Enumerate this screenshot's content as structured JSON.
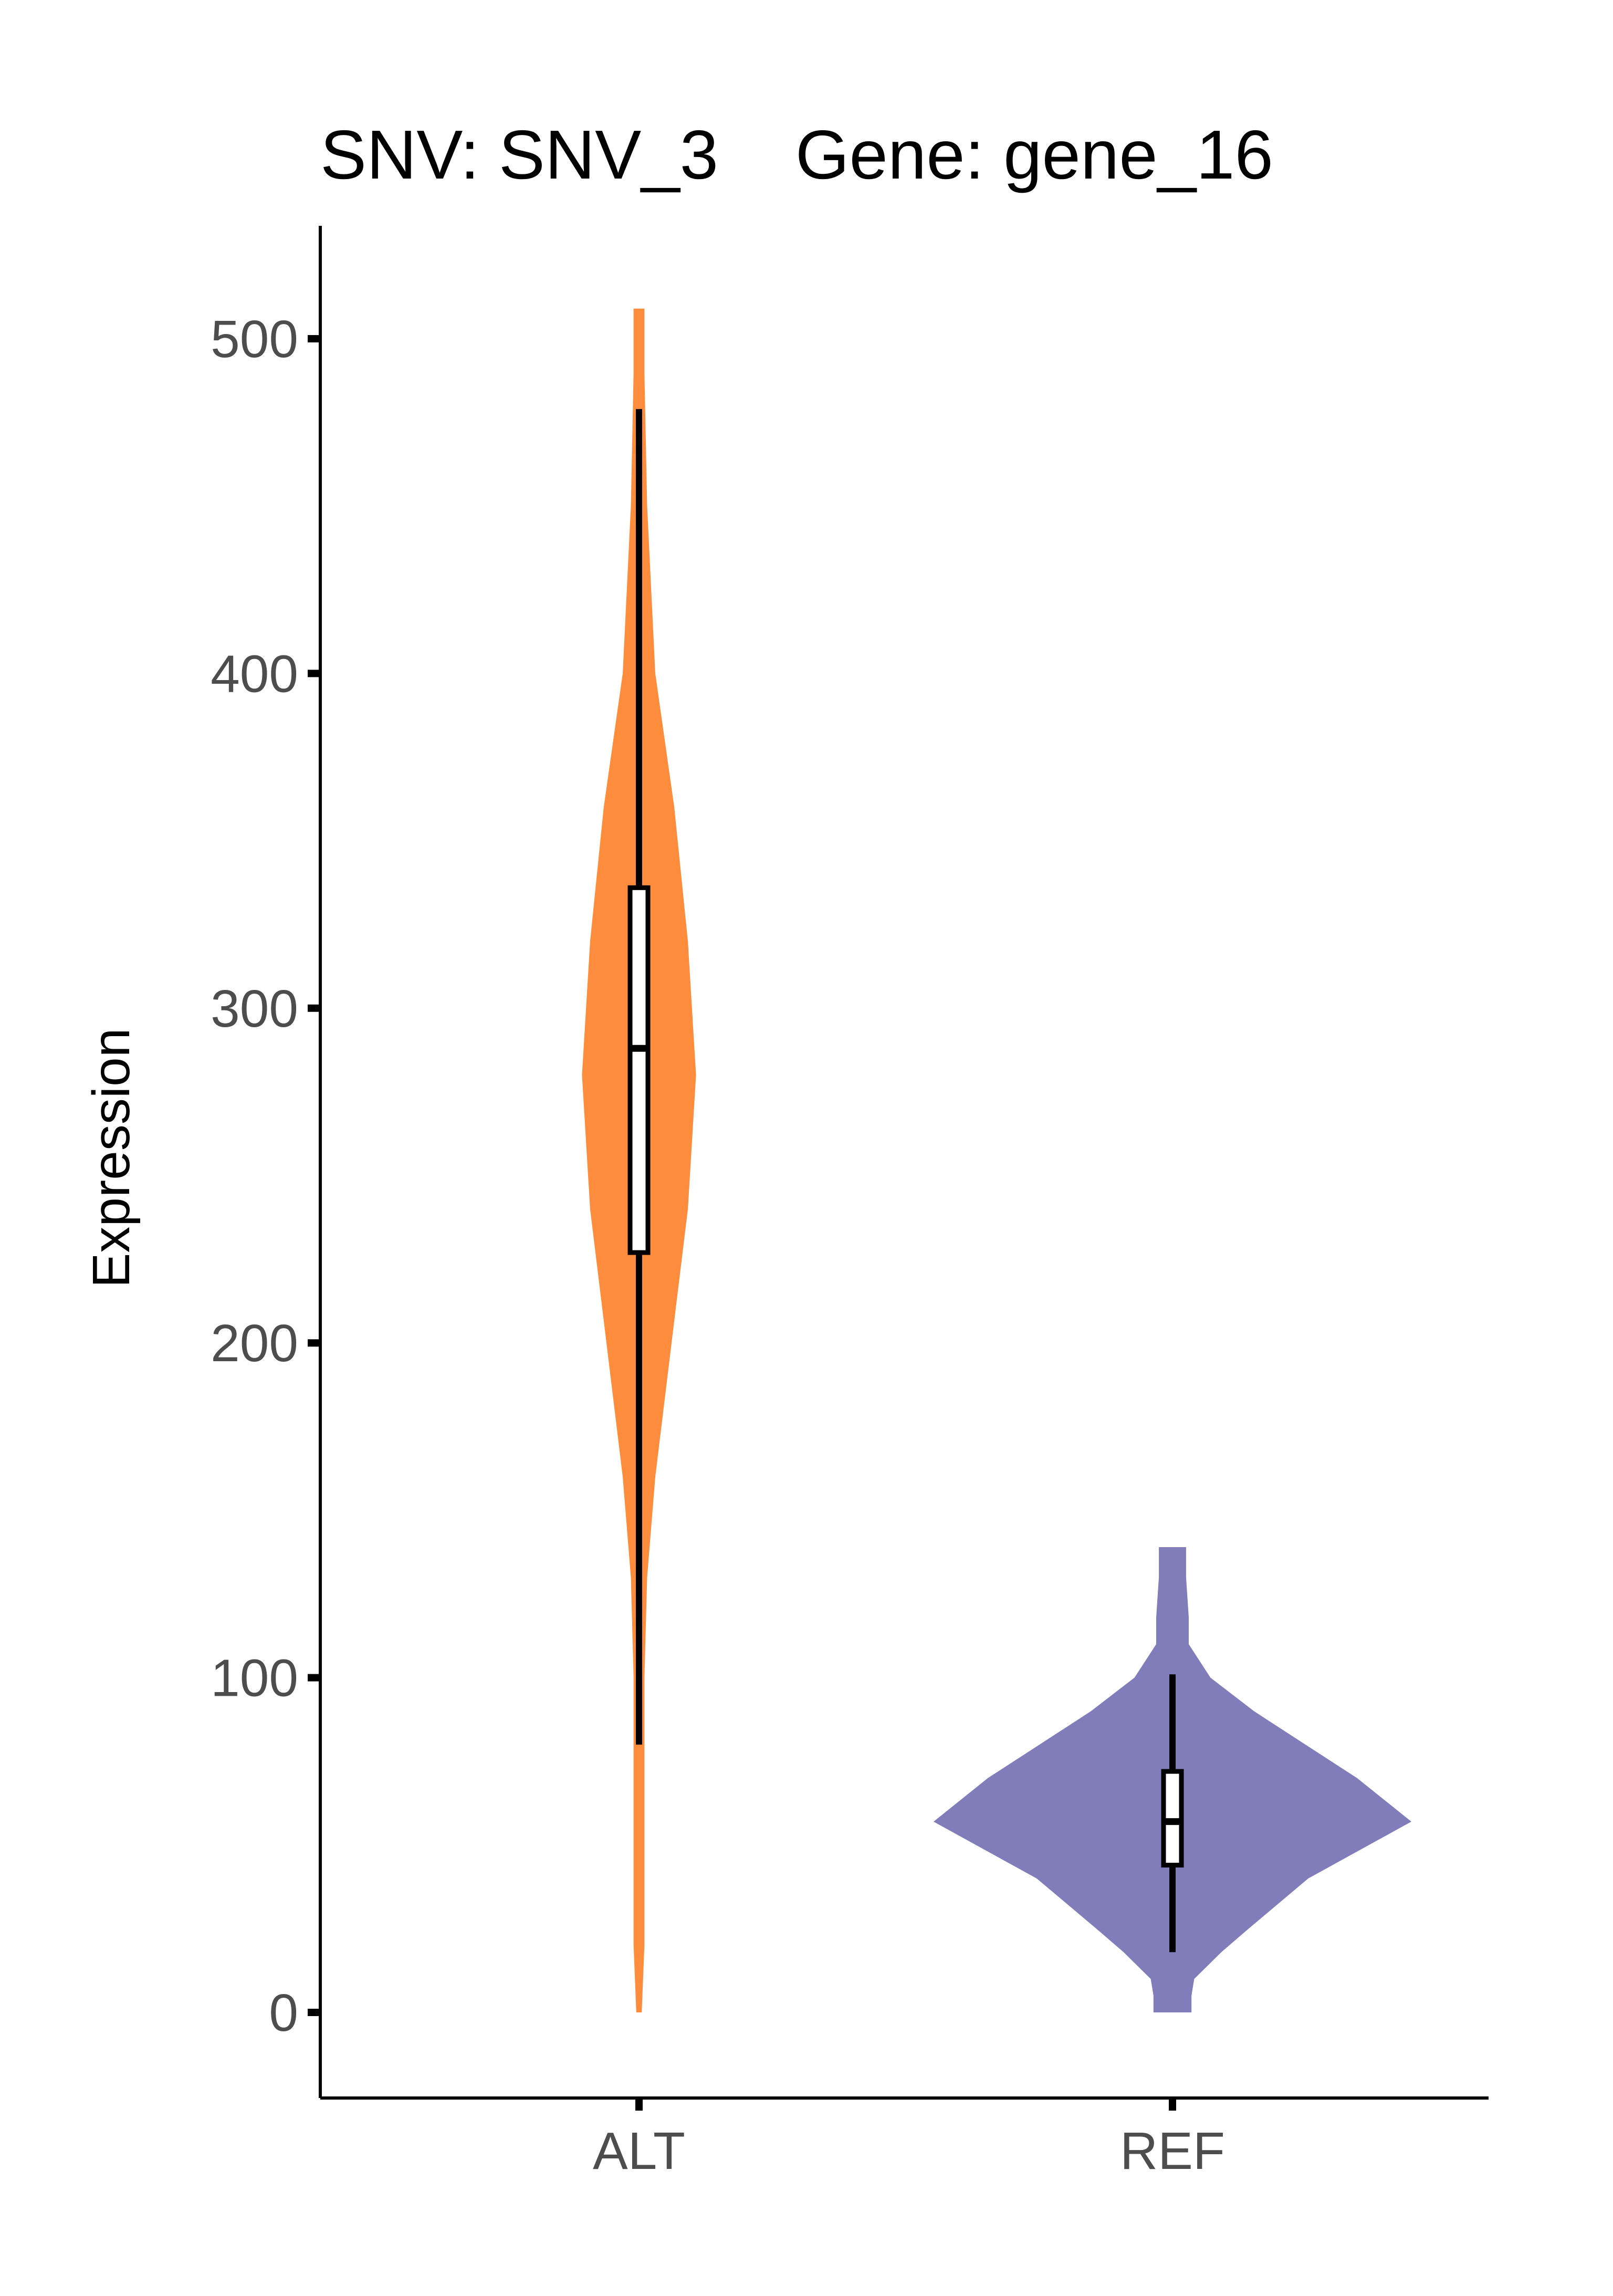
{
  "chart_data": {
    "type": "violin",
    "title": "SNV: SNV_3    Gene: gene_16",
    "xlabel": "",
    "ylabel": "Expression",
    "ylim": [
      -25,
      535
    ],
    "yticks": [
      0,
      100,
      200,
      300,
      400,
      500
    ],
    "grid": false,
    "legend": "none",
    "categories": [
      "ALT",
      "REF"
    ],
    "colors": {
      "ALT": "#fd8d3c",
      "REF": "#807dba"
    },
    "box_fill": "#ffffff",
    "box_stroke": "#000000",
    "groups": [
      {
        "name": "ALT",
        "min": 80,
        "q1": 227,
        "median": 288,
        "q3": 336,
        "max": 479,
        "density": [
          [
            0,
            0.01
          ],
          [
            20,
            0.02
          ],
          [
            60,
            0.02
          ],
          [
            100,
            0.02
          ],
          [
            130,
            0.03
          ],
          [
            160,
            0.06
          ],
          [
            200,
            0.12
          ],
          [
            240,
            0.18
          ],
          [
            280,
            0.21
          ],
          [
            320,
            0.18
          ],
          [
            360,
            0.13
          ],
          [
            400,
            0.06
          ],
          [
            450,
            0.03
          ],
          [
            490,
            0.02
          ],
          [
            509,
            0.02
          ]
        ]
      },
      {
        "name": "REF",
        "min": 18,
        "q1": 44,
        "median": 57,
        "q3": 72,
        "max": 101,
        "density": [
          [
            0,
            0.07
          ],
          [
            5,
            0.07
          ],
          [
            10,
            0.08
          ],
          [
            18,
            0.18
          ],
          [
            25,
            0.28
          ],
          [
            40,
            0.5
          ],
          [
            57,
            0.88
          ],
          [
            70,
            0.68
          ],
          [
            80,
            0.49
          ],
          [
            90,
            0.3
          ],
          [
            100,
            0.14
          ],
          [
            110,
            0.06
          ],
          [
            118,
            0.06
          ],
          [
            130,
            0.05
          ],
          [
            139,
            0.05
          ]
        ]
      }
    ]
  }
}
